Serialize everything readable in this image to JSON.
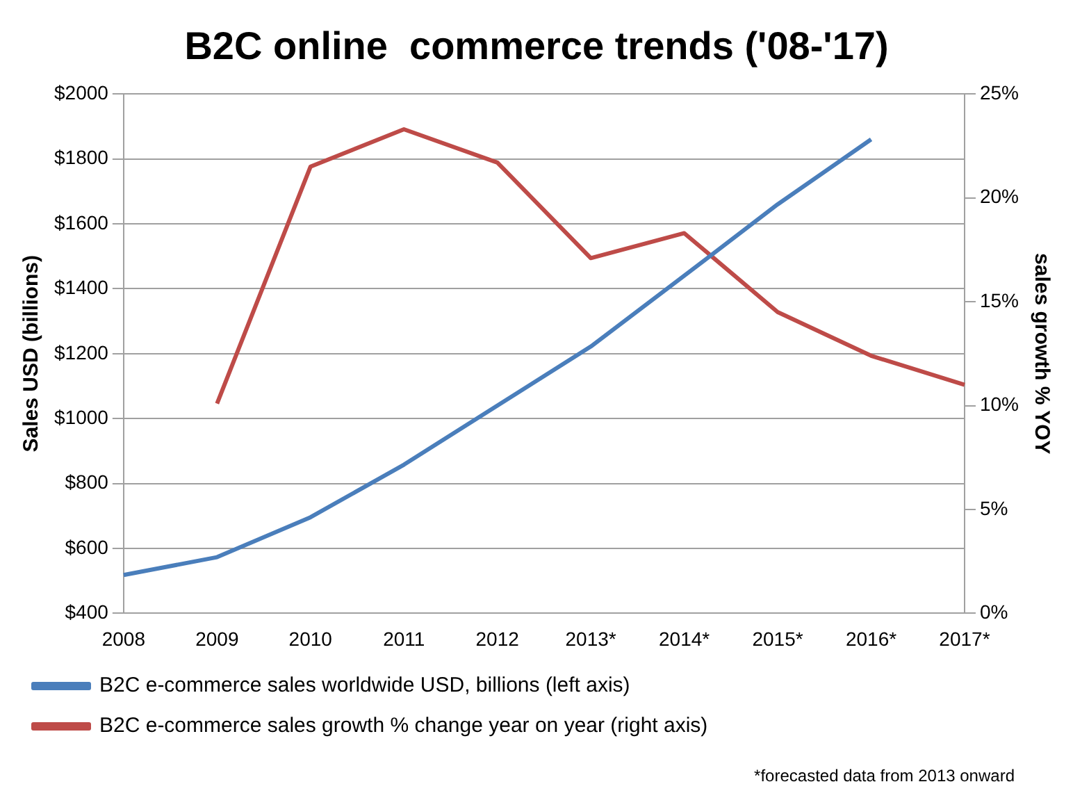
{
  "chart_data": {
    "type": "line",
    "title": "B2C online  commerce trends ('08-'17)",
    "ylabel": "Sales USD (billions)",
    "y2label": "sales growth % YOY",
    "categories": [
      "2008",
      "2009",
      "2010",
      "2011",
      "2012",
      "2013*",
      "2014*",
      "2015*",
      "2016*",
      "2017*"
    ],
    "series": [
      {
        "name": "B2C e-commerce sales worldwide USD, billions (left axis)",
        "color": "#4a7ebb",
        "values": [
          518,
          573,
          696,
          858,
          1040,
          1222,
          1440,
          1660,
          1860,
          null
        ]
      },
      {
        "name": "B2C e-commerce sales growth % change year on year (right axis)",
        "color": "#be4b48",
        "axis": "y2",
        "values": [
          null,
          10.1,
          21.5,
          23.3,
          21.7,
          17.1,
          18.3,
          14.5,
          12.4,
          11.0
        ]
      }
    ],
    "ylim": [
      400,
      2000
    ],
    "yticks": [
      {
        "value": 400,
        "label": "$400"
      },
      {
        "value": 600,
        "label": "$600"
      },
      {
        "value": 800,
        "label": "$800"
      },
      {
        "value": 1000,
        "label": "$1000"
      },
      {
        "value": 1200,
        "label": "$1200"
      },
      {
        "value": 1400,
        "label": "$1400"
      },
      {
        "value": 1600,
        "label": "$1600"
      },
      {
        "value": 1800,
        "label": "$1800"
      },
      {
        "value": 2000,
        "label": "$2000"
      }
    ],
    "y2lim": [
      0,
      25
    ],
    "y2ticks": [
      {
        "value": 0,
        "label": "0%"
      },
      {
        "value": 5,
        "label": "5%"
      },
      {
        "value": 10,
        "label": "10%"
      },
      {
        "value": 15,
        "label": "15%"
      },
      {
        "value": 20,
        "label": "20%"
      },
      {
        "value": 25,
        "label": "25%"
      }
    ],
    "grid": "y",
    "legend": "bottom",
    "marker": "none",
    "line_style": "solid",
    "annotations": [
      "*forecasted data from 2013 onward"
    ]
  }
}
